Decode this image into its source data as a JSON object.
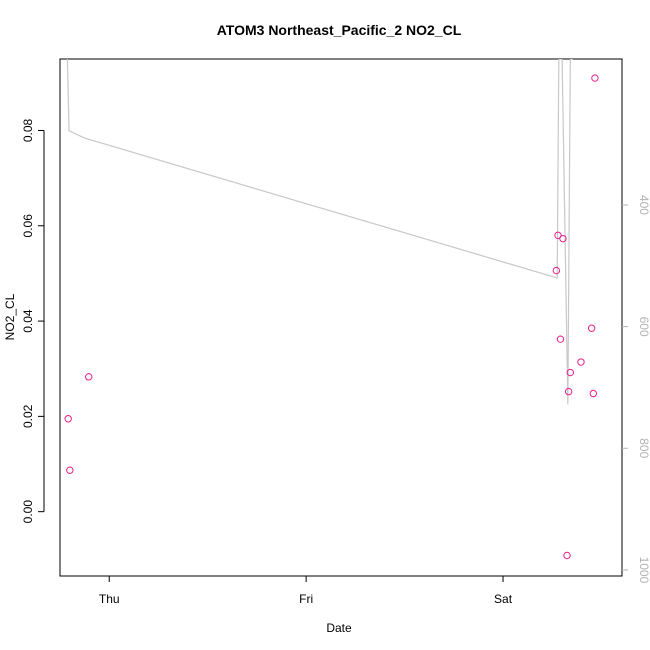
{
  "chart_data": {
    "type": "scatter",
    "title": "ATOM3 Northeast_Pacific_2 NO2_CL",
    "xlabel": "Date",
    "ylabel": "NO2_CL",
    "x_ticks": [
      "Thu",
      "Fri",
      "Sat"
    ],
    "y_ticks": [
      "0.00",
      "0.02",
      "0.04",
      "0.06",
      "0.08"
    ],
    "y2_ticks": [
      "400",
      "600",
      "800",
      "1000"
    ],
    "xlim_hours": [
      -6.0,
      62.5
    ],
    "ylim": [
      -0.0135,
      0.095
    ],
    "y2lim_inverted": [
      1010,
      160
    ],
    "point_color": "#e8208a",
    "line_color": "#c8c8c8",
    "right_axis_color": "#b3b3b3",
    "series": [
      {
        "kind": "points",
        "x_hours": [
          -5.0,
          -4.8,
          -2.5,
          54.5,
          54.7,
          55.0,
          55.3,
          55.8,
          56.0,
          56.2,
          57.5,
          58.8,
          59.0,
          59.2
        ],
        "values": [
          0.0195,
          0.0087,
          0.0283,
          0.0506,
          0.058,
          0.0362,
          0.0573,
          -0.0092,
          0.0252,
          0.0292,
          0.0314,
          0.0385,
          0.0248,
          0.091
        ]
      },
      {
        "kind": "line",
        "axis": "right",
        "x_hours": [
          -5.1,
          -4.9,
          -3.0,
          54.6,
          54.8,
          55.2,
          55.9,
          56.2,
          56.5
        ],
        "values": [
          160,
          278,
          290,
          520,
          160,
          160,
          728,
          160,
          160
        ]
      }
    ]
  }
}
